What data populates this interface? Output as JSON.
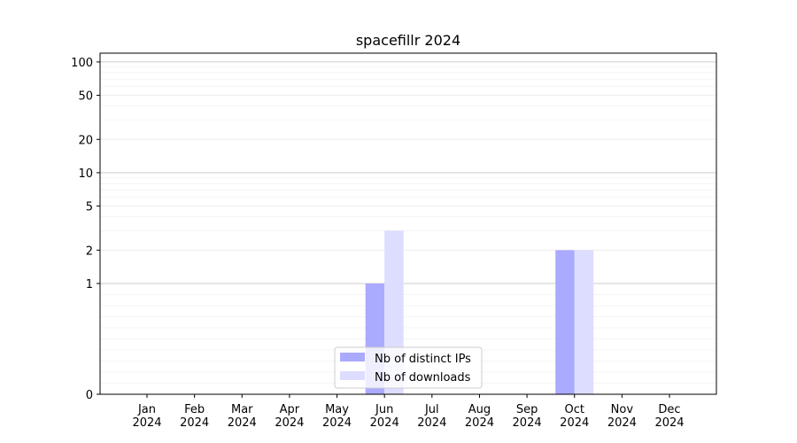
{
  "chart_data": {
    "type": "bar",
    "title": "spacefillr 2024",
    "xlabel": "",
    "ylabel": "",
    "yscale": "symlog",
    "ylim": [
      0,
      120
    ],
    "y_ticks": [
      0,
      1,
      2,
      5,
      10,
      20,
      50,
      100
    ],
    "categories": [
      [
        "Jan",
        "2024"
      ],
      [
        "Feb",
        "2024"
      ],
      [
        "Mar",
        "2024"
      ],
      [
        "Apr",
        "2024"
      ],
      [
        "May",
        "2024"
      ],
      [
        "Jun",
        "2024"
      ],
      [
        "Jul",
        "2024"
      ],
      [
        "Aug",
        "2024"
      ],
      [
        "Sep",
        "2024"
      ],
      [
        "Oct",
        "2024"
      ],
      [
        "Nov",
        "2024"
      ],
      [
        "Dec",
        "2024"
      ]
    ],
    "series": [
      {
        "name": "Nb of distinct IPs",
        "color": "#aaaaff",
        "values": [
          0,
          0,
          0,
          0,
          0,
          1,
          0,
          0,
          0,
          2,
          0,
          0
        ]
      },
      {
        "name": "Nb of downloads",
        "color": "#ddddff",
        "values": [
          0,
          0,
          0,
          0,
          0,
          3,
          0,
          0,
          0,
          2,
          0,
          0
        ]
      }
    ],
    "grid": true,
    "legend_position": "lower center"
  }
}
